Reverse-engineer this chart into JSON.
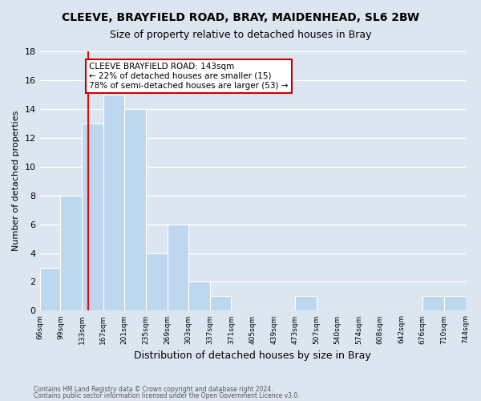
{
  "title": "CLEEVE, BRAYFIELD ROAD, BRAY, MAIDENHEAD, SL6 2BW",
  "subtitle": "Size of property relative to detached houses in Bray",
  "xlabel": "Distribution of detached houses by size in Bray",
  "ylabel": "Number of detached properties",
  "footnote1": "Contains HM Land Registry data © Crown copyright and database right 2024.",
  "footnote2": "Contains public sector information licensed under the Open Government Licence v3.0.",
  "bin_edges": [
    66,
    99,
    133,
    167,
    201,
    235,
    269,
    303,
    337,
    371,
    405,
    439,
    473,
    507,
    540,
    574,
    608,
    642,
    676,
    710,
    744
  ],
  "bin_labels": [
    "66sqm",
    "99sqm",
    "133sqm",
    "167sqm",
    "201sqm",
    "235sqm",
    "269sqm",
    "303sqm",
    "337sqm",
    "371sqm",
    "405sqm",
    "439sqm",
    "473sqm",
    "507sqm",
    "540sqm",
    "574sqm",
    "608sqm",
    "642sqm",
    "676sqm",
    "710sqm",
    "744sqm"
  ],
  "counts": [
    3,
    8,
    13,
    15,
    14,
    4,
    6,
    2,
    1,
    0,
    0,
    0,
    1,
    0,
    0,
    0,
    0,
    0,
    1,
    1
  ],
  "bar_color": "#bdd7ee",
  "bar_edge_color": "#ffffff",
  "grid_color": "#ffffff",
  "bg_color": "#dce6f0",
  "red_line_x": 143,
  "annotation_title": "CLEEVE BRAYFIELD ROAD: 143sqm",
  "annotation_line1": "← 22% of detached houses are smaller (15)",
  "annotation_line2": "78% of semi-detached houses are larger (53) →",
  "annotation_box_color": "#ffffff",
  "annotation_box_edge": "#cc0000",
  "ylim": [
    0,
    18
  ],
  "yticks": [
    0,
    2,
    4,
    6,
    8,
    10,
    12,
    14,
    16,
    18
  ]
}
